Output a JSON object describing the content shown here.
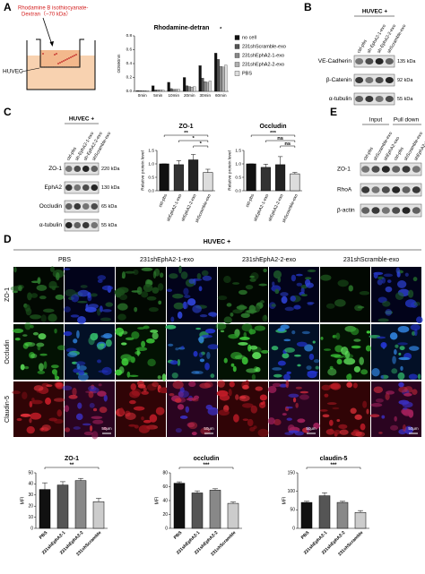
{
  "panel_a": {
    "label": "A",
    "dye_label": [
      "Rhodamine B isothiocyanate-",
      "Dextran（~70 kDa）"
    ],
    "cell_label": "HUVEC",
    "chart": {
      "type": "bar",
      "title": "Rhodamine-detran",
      "ylabel": "OD590nm",
      "categories": [
        "0min",
        "5min",
        "10min",
        "20min",
        "30min",
        "60min"
      ],
      "series": [
        {
          "name": "no cell",
          "color": "#111111",
          "values": [
            0.01,
            0.08,
            0.13,
            0.2,
            0.37,
            0.55
          ]
        },
        {
          "name": "231shScramble-exo",
          "color": "#555555",
          "values": [
            0.01,
            0.02,
            0.04,
            0.08,
            0.19,
            0.46
          ]
        },
        {
          "name": "231shEphA2-1-exo",
          "color": "#888888",
          "values": [
            0.01,
            0.02,
            0.03,
            0.07,
            0.14,
            0.36
          ]
        },
        {
          "name": "231shEphA2-2-exo",
          "color": "#b0b0b0",
          "values": [
            0.01,
            0.02,
            0.03,
            0.06,
            0.13,
            0.35
          ]
        },
        {
          "name": "PBS",
          "color": "#dddddd",
          "values": [
            0.01,
            0.02,
            0.03,
            0.07,
            0.15,
            0.38
          ]
        }
      ],
      "ylim": [
        0,
        0.8
      ],
      "yticks": [
        {
          "value": 0,
          "label": "0.0"
        },
        {
          "value": 0.2,
          "label": "0.2"
        },
        {
          "value": 0.4,
          "label": "0.4"
        },
        {
          "value": 0.6,
          "label": "0.6"
        },
        {
          "value": 0.8,
          "label": "0.8"
        }
      ],
      "significance": [
        "*"
      ]
    }
  },
  "panel_b": {
    "label": "B",
    "header": "HUVEC +",
    "blot": {
      "lanes": [
        "ctrl-pbs",
        "sh-EphA2-1-exo",
        "sh-EphA2-2-exo",
        "shScramble-exo"
      ],
      "rows": [
        {
          "name": "VE-Cadherin",
          "kda": "135 kDa"
        },
        {
          "name": "β-Catenin",
          "kda": "92 kDa"
        },
        {
          "name": "α-tubulin",
          "kda": "55 kDa"
        }
      ]
    }
  },
  "panel_c": {
    "label": "C",
    "header": "HUVEC +",
    "blot": {
      "lanes": [
        "ctrl-pbs",
        "sh-EphA2-1-exo",
        "sh-EphA2-2-exo",
        "shScramble-exo"
      ],
      "rows": [
        {
          "name": "ZO-1",
          "kda": "220 kDa"
        },
        {
          "name": "EphA2",
          "kda": "130 kDa"
        },
        {
          "name": "Occludin",
          "kda": "65 kDa"
        },
        {
          "name": "α-tubulin",
          "kda": "55 kDa"
        }
      ]
    },
    "charts": [
      {
        "type": "bar",
        "title": "ZO-1",
        "ylabel": "Relative protein level",
        "categories": [
          "ctrl-pbs",
          "shEphA2-1-exo",
          "shEphA2-2-exo",
          "shScramble-exo"
        ],
        "values": [
          1.0,
          0.97,
          1.15,
          0.68
        ],
        "errors": [
          0,
          0.15,
          0.2,
          0.12
        ],
        "colors": [
          "#111111",
          "#333333",
          "#222222",
          "#dddddd"
        ],
        "ylim": [
          0,
          1.5
        ],
        "yticks": [
          {
            "value": 0,
            "label": "0.0"
          },
          {
            "value": 0.5,
            "label": "0.5"
          },
          {
            "value": 1,
            "label": "1.0"
          },
          {
            "value": 1.5,
            "label": "1.5"
          }
        ],
        "significance": [
          "**",
          "*",
          "*"
        ]
      },
      {
        "type": "bar",
        "title": "Occludin",
        "ylabel": "Relative protein level",
        "categories": [
          "ctrl-pbs",
          "shEphA2-1-exo",
          "shEphA2-2-exo",
          "shScramble-exo"
        ],
        "values": [
          1.0,
          0.87,
          0.97,
          0.63
        ],
        "errors": [
          0,
          0.12,
          0.3,
          0.05
        ],
        "colors": [
          "#111111",
          "#333333",
          "#222222",
          "#dddddd"
        ],
        "ylim": [
          0,
          1.5
        ],
        "yticks": [
          {
            "value": 0,
            "label": "0.0"
          },
          {
            "value": 0.5,
            "label": "0.5"
          },
          {
            "value": 1,
            "label": "1.0"
          },
          {
            "value": 1.5,
            "label": "1.5"
          }
        ],
        "significance": [
          "***",
          "ns",
          "ns"
        ]
      }
    ]
  },
  "panel_d": {
    "label": "D",
    "header": "HUVEC +",
    "conditions": [
      "PBS",
      "231shEphA2-1-exo",
      "231shEphA2-2-exo",
      "231shScramble-exo"
    ],
    "stains": [
      "ZO-1",
      "Occludin",
      "Claudin-5"
    ],
    "scale_bar": "50μm",
    "charts": [
      {
        "type": "bar",
        "title": "ZO-1",
        "ylabel": "MFI",
        "categories": [
          "PBS",
          "231shEphA2-1",
          "231shEphA2-2",
          "231shScramble"
        ],
        "values": [
          35,
          39,
          43,
          24
        ],
        "errors": [
          6,
          3,
          2,
          3
        ],
        "colors": [
          "#111111",
          "#555555",
          "#888888",
          "#cccccc"
        ],
        "ylim": [
          0,
          50
        ],
        "yticks": [
          0,
          10,
          20,
          30,
          40,
          50
        ],
        "significance": [
          "**"
        ]
      },
      {
        "type": "bar",
        "title": "occludin",
        "ylabel": "MFI",
        "categories": [
          "PBS",
          "231shEphA2-1",
          "231shEphA2-2",
          "231shScramble"
        ],
        "values": [
          65,
          51,
          55,
          36
        ],
        "errors": [
          2,
          3,
          2,
          2
        ],
        "colors": [
          "#111111",
          "#555555",
          "#888888",
          "#cccccc"
        ],
        "ylim": [
          0,
          80
        ],
        "yticks": [
          0,
          20,
          40,
          60,
          80
        ],
        "significance": [
          "***"
        ]
      },
      {
        "type": "bar",
        "title": "claudin-5",
        "ylabel": "MFI",
        "categories": [
          "PBS",
          "231shEphA2-1",
          "231shEphA2-2",
          "231shScramble"
        ],
        "values": [
          70,
          88,
          70,
          43
        ],
        "errors": [
          3,
          8,
          3,
          5
        ],
        "colors": [
          "#111111",
          "#555555",
          "#888888",
          "#cccccc"
        ],
        "ylim": [
          0,
          150
        ],
        "yticks": [
          0,
          50,
          100,
          150
        ],
        "significance": [
          "***"
        ]
      }
    ]
  },
  "panel_e": {
    "label": "E",
    "groups": [
      "Input",
      "Pull down"
    ],
    "blot": {
      "lanes": [
        "ctrl-pbs",
        "shScramble-exo",
        "shEphA2-exo",
        "ctrl-pbs",
        "shScramble-exo",
        "shEphA2-exo"
      ],
      "rows": [
        {
          "name": "ZO-1"
        },
        {
          "name": "RhoA"
        },
        {
          "name": "β-actin"
        }
      ]
    }
  }
}
